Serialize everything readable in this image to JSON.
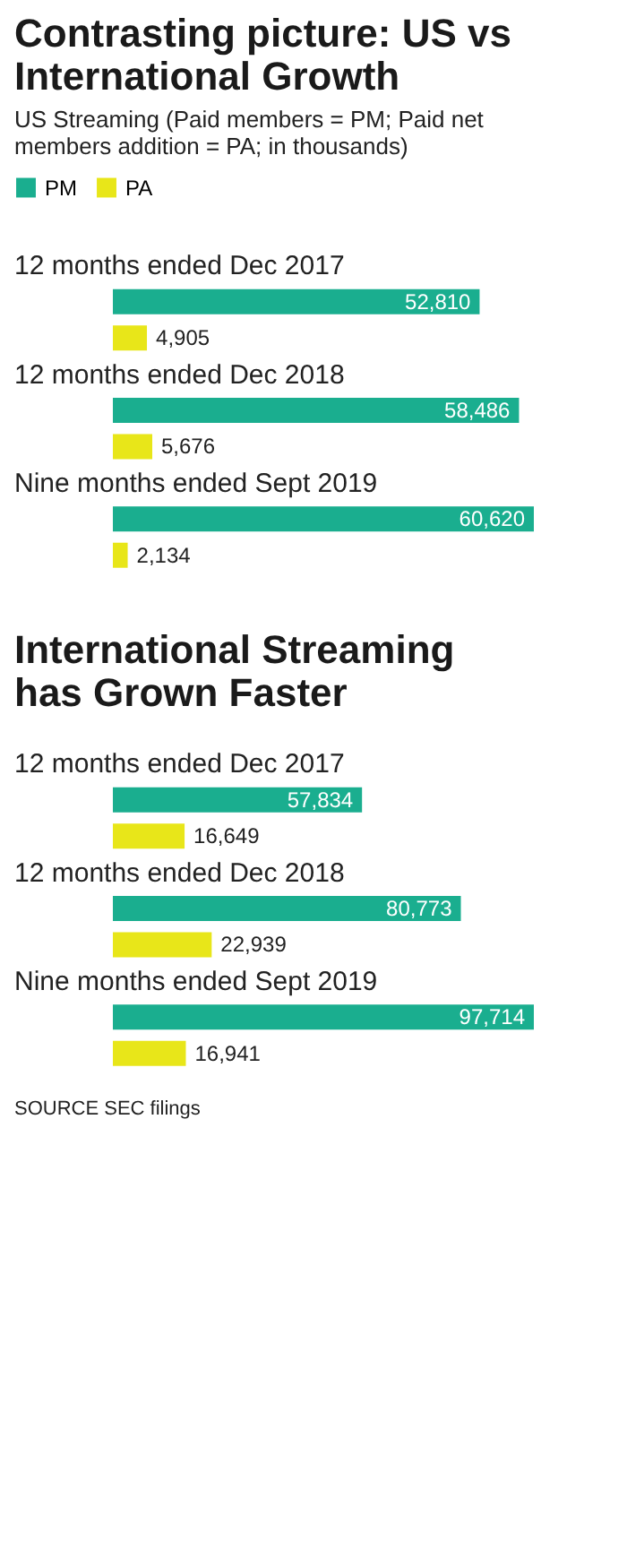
{
  "chart_data": [
    {
      "type": "bar",
      "orientation": "horizontal",
      "title": "Contrasting picture: US vs International Growth",
      "subtitle": "US Streaming (Paid members = PM; Paid net members addition = PA; in thousands)",
      "categories": [
        "12 months ended Dec 2017",
        "12 months ended Dec 2018",
        "Nine months ended Sept 2019"
      ],
      "series": [
        {
          "name": "PM",
          "color": "#1aae8f",
          "values": [
            52810,
            58486,
            60620
          ],
          "value_labels": [
            "52,810",
            "58,486",
            "60,620"
          ]
        },
        {
          "name": "PA",
          "color": "#e8e619",
          "values": [
            4905,
            5676,
            2134
          ],
          "value_labels": [
            "4,905",
            "5,676",
            "2,134"
          ]
        }
      ],
      "legend": "top left"
    },
    {
      "type": "bar",
      "orientation": "horizontal",
      "title": "International Streaming has Grown Faster",
      "categories": [
        "12 months ended Dec 2017",
        "12 months ended Dec 2018",
        "Nine months ended Sept 2019"
      ],
      "series": [
        {
          "color": "#1aae8f",
          "values": [
            57834,
            80773,
            97714
          ],
          "value_labels": [
            "57,834",
            "80,773",
            "97,714"
          ]
        },
        {
          "color": "#e8e619",
          "values": [
            16649,
            22939,
            16941
          ],
          "value_labels": [
            "16,649",
            "22,939",
            "16,941"
          ]
        }
      ],
      "annotations": [
        "SOURCE SEC filings"
      ]
    }
  ]
}
